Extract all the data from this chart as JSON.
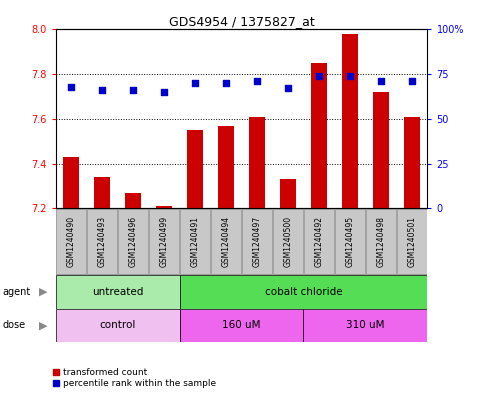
{
  "title": "GDS4954 / 1375827_at",
  "samples": [
    "GSM1240490",
    "GSM1240493",
    "GSM1240496",
    "GSM1240499",
    "GSM1240491",
    "GSM1240494",
    "GSM1240497",
    "GSM1240500",
    "GSM1240492",
    "GSM1240495",
    "GSM1240498",
    "GSM1240501"
  ],
  "transformed_count": [
    7.43,
    7.34,
    7.27,
    7.21,
    7.55,
    7.57,
    7.61,
    7.33,
    7.85,
    7.98,
    7.72,
    7.61
  ],
  "percentile_rank": [
    68,
    66,
    66,
    65,
    70,
    70,
    71,
    67,
    74,
    74,
    71,
    71
  ],
  "ylim_left": [
    7.2,
    8.0
  ],
  "ylim_right": [
    0,
    100
  ],
  "yticks_left": [
    7.2,
    7.4,
    7.6,
    7.8,
    8.0
  ],
  "ytick_labels_right": [
    "0",
    "25",
    "50",
    "75",
    "100%"
  ],
  "bar_color": "#cc0000",
  "dot_color": "#0000cc",
  "agent_groups": [
    {
      "label": "untreated",
      "start": 0,
      "end": 4,
      "color": "#aaeaaa"
    },
    {
      "label": "cobalt chloride",
      "start": 4,
      "end": 12,
      "color": "#55dd55"
    }
  ],
  "dose_groups": [
    {
      "label": "control",
      "start": 0,
      "end": 4,
      "color": "#f0c0f0"
    },
    {
      "label": "160 uM",
      "start": 4,
      "end": 8,
      "color": "#ee66ee"
    },
    {
      "label": "310 uM",
      "start": 8,
      "end": 12,
      "color": "#ee66ee"
    }
  ],
  "legend_items": [
    {
      "color": "#cc0000",
      "label": "transformed count"
    },
    {
      "color": "#0000cc",
      "label": "percentile rank within the sample"
    }
  ],
  "bar_width": 0.5,
  "sample_box_color": "#c8c8c8",
  "sample_box_edge": "#888888"
}
